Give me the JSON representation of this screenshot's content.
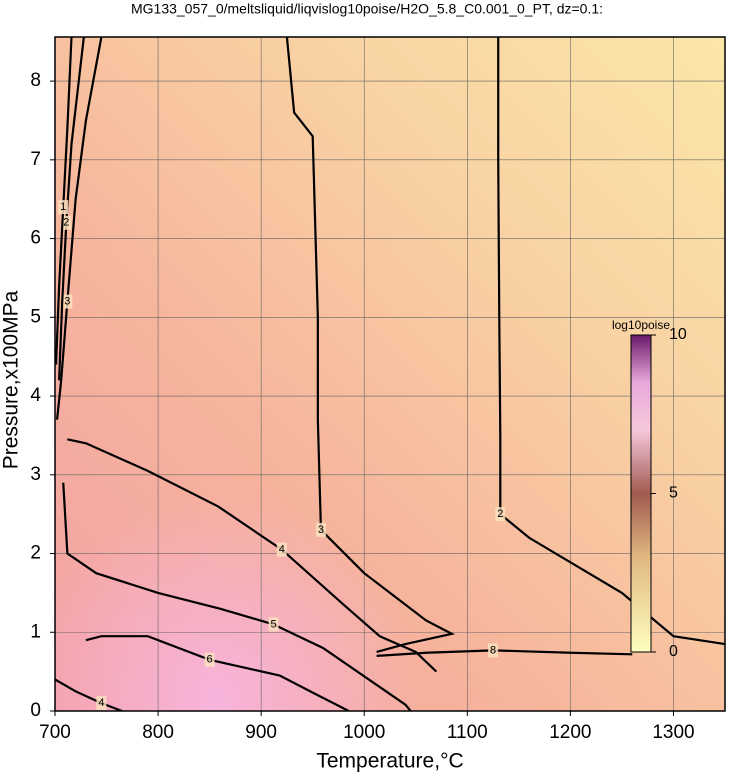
{
  "chart_data": {
    "type": "contour",
    "title": "MG133_057_0/meltsliquid/liqvislog10poise/H2O_5.8_C0.001_0_PT, dz=0.1:",
    "x_label": "Temperature,°C",
    "y_label": "Pressure,x100MPa",
    "xlim": [
      700,
      1350
    ],
    "ylim": [
      0,
      8.56
    ],
    "xticks": [
      700,
      800,
      900,
      1000,
      1100,
      1200,
      1300
    ],
    "yticks": [
      0,
      1,
      2,
      3,
      4,
      5,
      6,
      7,
      8
    ],
    "grid": true,
    "contours": [
      {
        "level": 2,
        "x": [
          1130,
          1130,
          1131,
          1132,
          1132,
          1160,
          1250,
          1300,
          1350
        ],
        "y": [
          8.56,
          7.0,
          5.0,
          3.5,
          2.5,
          2.2,
          1.5,
          0.95,
          0.85
        ]
      },
      {
        "level": 3,
        "x": [
          925,
          932,
          950,
          955,
          955,
          958,
          1000,
          1060,
          1085,
          1040,
          1012
        ],
        "y": [
          8.56,
          7.6,
          7.3,
          5.0,
          3.7,
          2.3,
          1.75,
          1.15,
          0.98,
          0.85,
          0.75
        ]
      },
      {
        "level": 4,
        "x": [
          712,
          730,
          790,
          858,
          920,
          980,
          1015,
          1050,
          1070
        ],
        "y": [
          3.45,
          3.4,
          3.05,
          2.6,
          2.05,
          1.35,
          0.95,
          0.75,
          0.5
        ]
      },
      {
        "level": 5,
        "x": [
          708,
          712,
          740,
          800,
          860,
          912,
          960,
          1010,
          1040,
          1045
        ],
        "y": [
          2.9,
          2.0,
          1.75,
          1.5,
          1.3,
          1.1,
          0.8,
          0.35,
          0.08,
          0
        ]
      },
      {
        "level": 6,
        "x": [
          730,
          745,
          790,
          850,
          918,
          955,
          985
        ],
        "y": [
          0.9,
          0.95,
          0.95,
          0.65,
          0.45,
          0.2,
          0
        ]
      },
      {
        "level": 8,
        "x": [
          1012,
          1060,
          1125,
          1200,
          1260
        ],
        "y": [
          0.7,
          0.74,
          0.77,
          0.74,
          0.72
        ]
      },
      {
        "level": 3,
        "x": [
          745,
          730,
          720,
          712,
          706,
          702
        ],
        "y": [
          8.56,
          7.5,
          6.5,
          5.2,
          4.2,
          3.7
        ]
      },
      {
        "level": 2,
        "x": [
          728,
          716,
          711,
          707,
          704
        ],
        "y": [
          8.56,
          7.2,
          6.2,
          5.2,
          4.2
        ]
      },
      {
        "level": 1,
        "x": [
          716,
          712,
          708,
          704,
          701
        ],
        "y": [
          8.56,
          7.4,
          6.4,
          5.4,
          4.4
        ]
      },
      {
        "level": 4,
        "x": [
          700,
          720,
          745,
          765
        ],
        "y": [
          0.4,
          0.25,
          0.1,
          0
        ]
      }
    ],
    "colorbar": {
      "label": "log10poise",
      "lim": [
        0,
        10
      ],
      "ticks": [
        0,
        5,
        10
      ]
    }
  }
}
